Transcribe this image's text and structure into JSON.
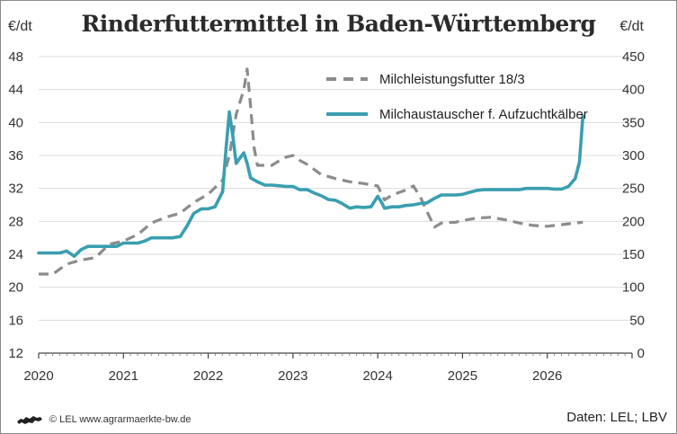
{
  "chart_data": {
    "type": "line",
    "title": "Rinderfuttermittel in Baden-Württemberg",
    "ylabel_left": "€/dt",
    "ylabel_right": "€/dt",
    "x_ticks": [
      "2020",
      "2021",
      "2022",
      "2023",
      "2024",
      "2025",
      "2026"
    ],
    "xlim": [
      2020,
      2027
    ],
    "y_left_ticks": [
      "12",
      "16",
      "20",
      "24",
      "28",
      "32",
      "36",
      "40",
      "44",
      "48"
    ],
    "ylim_left": [
      12,
      48
    ],
    "y_right_ticks": [
      "0",
      "50",
      "100",
      "150",
      "200",
      "250",
      "300",
      "350",
      "400",
      "450"
    ],
    "ylim_right": [
      0,
      450
    ],
    "grid": "horizontal",
    "legend_position": "top-right",
    "series": [
      {
        "name": "Milchleistungsfutter 18/3",
        "axis": "left",
        "style": "dashed",
        "color": "#8c8c8c",
        "points": [
          [
            2020.0,
            21.6
          ],
          [
            2020.17,
            21.6
          ],
          [
            2020.33,
            22.8
          ],
          [
            2020.5,
            23.3
          ],
          [
            2020.67,
            23.6
          ],
          [
            2020.83,
            25.2
          ],
          [
            2021.0,
            25.6
          ],
          [
            2021.17,
            26.4
          ],
          [
            2021.33,
            27.8
          ],
          [
            2021.5,
            28.5
          ],
          [
            2021.67,
            29.0
          ],
          [
            2021.83,
            30.3
          ],
          [
            2022.0,
            31.3
          ],
          [
            2022.17,
            33.0
          ],
          [
            2022.25,
            36.0
          ],
          [
            2022.33,
            41.0
          ],
          [
            2022.42,
            44.0
          ],
          [
            2022.46,
            46.5
          ],
          [
            2022.5,
            42.0
          ],
          [
            2022.54,
            37.0
          ],
          [
            2022.58,
            34.8
          ],
          [
            2022.67,
            34.8
          ],
          [
            2022.75,
            34.8
          ],
          [
            2022.83,
            35.3
          ],
          [
            2022.92,
            35.8
          ],
          [
            2023.0,
            36.0
          ],
          [
            2023.08,
            35.4
          ],
          [
            2023.17,
            34.9
          ],
          [
            2023.25,
            34.3
          ],
          [
            2023.33,
            33.7
          ],
          [
            2023.5,
            33.2
          ],
          [
            2023.67,
            32.8
          ],
          [
            2023.83,
            32.6
          ],
          [
            2024.0,
            32.3
          ],
          [
            2024.08,
            30.6
          ],
          [
            2024.17,
            31.2
          ],
          [
            2024.33,
            31.8
          ],
          [
            2024.42,
            32.3
          ],
          [
            2024.5,
            31.0
          ],
          [
            2024.58,
            29.2
          ],
          [
            2024.67,
            27.3
          ],
          [
            2024.75,
            27.8
          ],
          [
            2024.92,
            27.9
          ],
          [
            2025.0,
            28.1
          ],
          [
            2025.17,
            28.4
          ],
          [
            2025.33,
            28.5
          ],
          [
            2025.5,
            28.2
          ],
          [
            2025.67,
            27.8
          ],
          [
            2025.83,
            27.5
          ],
          [
            2026.0,
            27.4
          ],
          [
            2026.17,
            27.6
          ],
          [
            2026.33,
            27.8
          ],
          [
            2026.42,
            27.9
          ]
        ]
      },
      {
        "name": "Milchaustauscher f. Aufzuchtkälber",
        "axis": "right",
        "style": "solid",
        "color": "#3a9fb0",
        "points": [
          [
            2020.0,
            152
          ],
          [
            2020.17,
            152
          ],
          [
            2020.25,
            152
          ],
          [
            2020.33,
            155
          ],
          [
            2020.42,
            147
          ],
          [
            2020.5,
            157
          ],
          [
            2020.58,
            162
          ],
          [
            2020.67,
            162
          ],
          [
            2020.83,
            162
          ],
          [
            2020.92,
            162
          ],
          [
            2021.0,
            167
          ],
          [
            2021.17,
            167
          ],
          [
            2021.25,
            170
          ],
          [
            2021.33,
            175
          ],
          [
            2021.5,
            175
          ],
          [
            2021.58,
            175
          ],
          [
            2021.67,
            177
          ],
          [
            2021.75,
            193
          ],
          [
            2021.83,
            212
          ],
          [
            2021.92,
            219
          ],
          [
            2022.0,
            219
          ],
          [
            2022.08,
            222
          ],
          [
            2022.17,
            245
          ],
          [
            2022.21,
            310
          ],
          [
            2022.25,
            366
          ],
          [
            2022.29,
            330
          ],
          [
            2022.33,
            288
          ],
          [
            2022.38,
            297
          ],
          [
            2022.42,
            304
          ],
          [
            2022.46,
            288
          ],
          [
            2022.5,
            266
          ],
          [
            2022.58,
            260
          ],
          [
            2022.67,
            255
          ],
          [
            2022.75,
            255
          ],
          [
            2022.83,
            254
          ],
          [
            2022.92,
            253
          ],
          [
            2023.0,
            253
          ],
          [
            2023.08,
            248
          ],
          [
            2023.17,
            248
          ],
          [
            2023.25,
            243
          ],
          [
            2023.33,
            239
          ],
          [
            2023.42,
            233
          ],
          [
            2023.5,
            232
          ],
          [
            2023.58,
            227
          ],
          [
            2023.67,
            220
          ],
          [
            2023.75,
            222
          ],
          [
            2023.83,
            221
          ],
          [
            2023.92,
            222
          ],
          [
            2024.0,
            238
          ],
          [
            2024.04,
            230
          ],
          [
            2024.08,
            220
          ],
          [
            2024.17,
            222
          ],
          [
            2024.25,
            222
          ],
          [
            2024.33,
            224
          ],
          [
            2024.42,
            225
          ],
          [
            2024.5,
            227
          ],
          [
            2024.58,
            228
          ],
          [
            2024.67,
            235
          ],
          [
            2024.75,
            240
          ],
          [
            2024.83,
            240
          ],
          [
            2024.92,
            240
          ],
          [
            2025.0,
            241
          ],
          [
            2025.08,
            244
          ],
          [
            2025.17,
            247
          ],
          [
            2025.25,
            248
          ],
          [
            2025.33,
            248
          ],
          [
            2025.42,
            248
          ],
          [
            2025.5,
            248
          ],
          [
            2025.58,
            248
          ],
          [
            2025.67,
            248
          ],
          [
            2025.75,
            250
          ],
          [
            2025.83,
            250
          ],
          [
            2025.92,
            250
          ],
          [
            2026.0,
            250
          ],
          [
            2026.08,
            249
          ],
          [
            2026.17,
            249
          ],
          [
            2026.25,
            253
          ],
          [
            2026.33,
            265
          ],
          [
            2026.38,
            290
          ],
          [
            2026.42,
            360
          ]
        ]
      }
    ]
  },
  "footer": {
    "copyright": "©",
    "credit": "LEL www.agrarmaerkte-bw.de",
    "source": "Daten: LEL; LBV"
  }
}
